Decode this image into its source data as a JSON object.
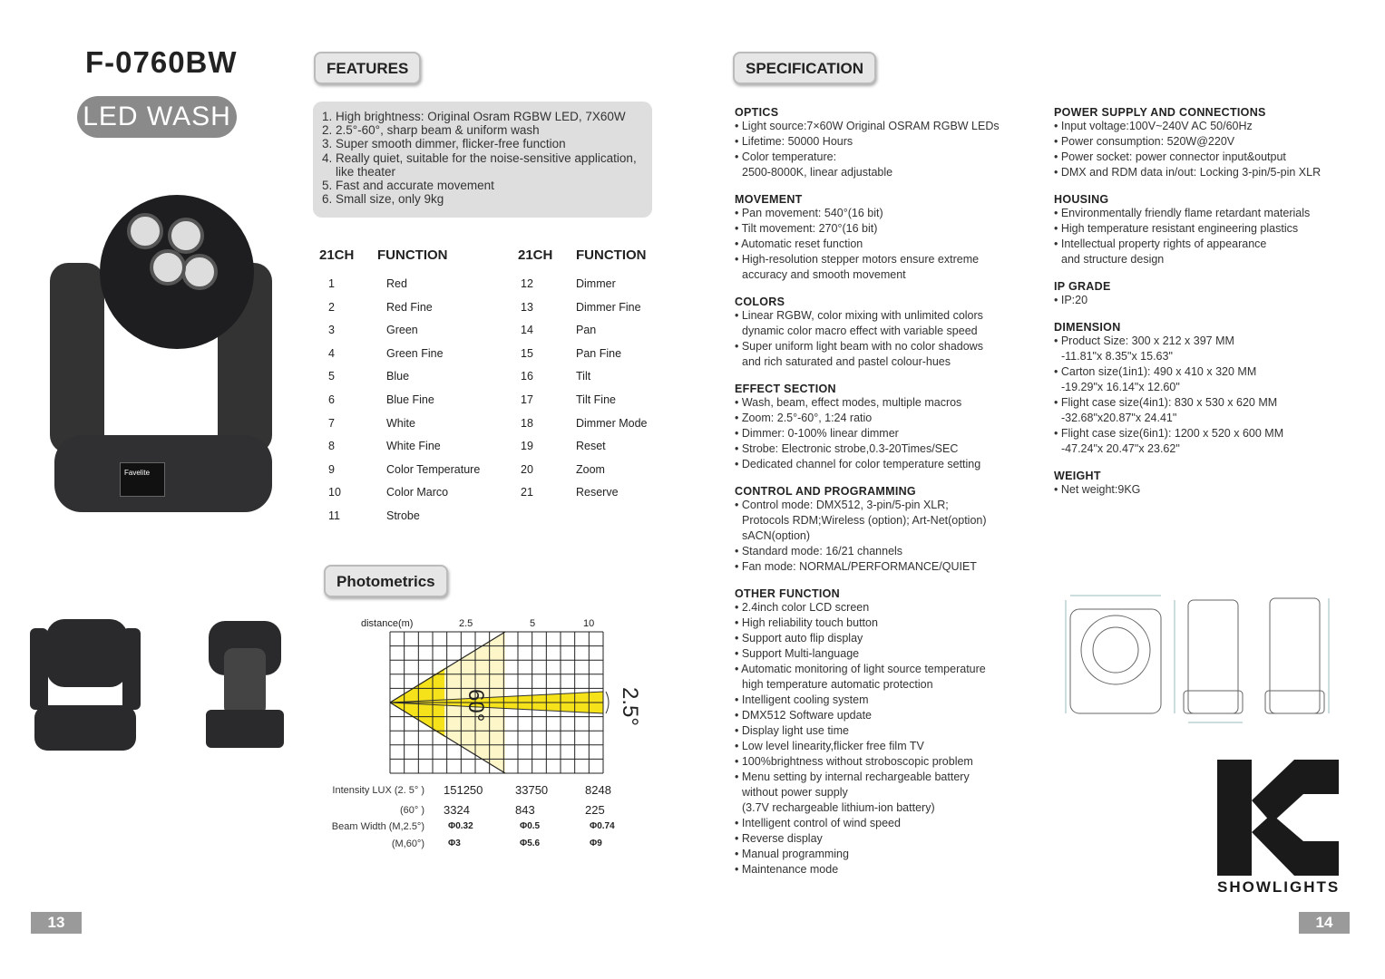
{
  "left_page": {
    "model": "F-0760BW",
    "subtitle": "LED WASH",
    "features_label": "FEATURES",
    "features": [
      "1. High brightness: Original Osram RGBW LED, 7X60W",
      "2. 2.5°-60°, sharp beam & uniform wash",
      "3. Super smooth dimmer, flicker-free function",
      "4. Really quiet, suitable for the noise-sensitive application, like theater",
      "5. Fast and accurate movement",
      "6. Small size, only 9kg"
    ],
    "channel_header": "21CH",
    "function_header": "FUNCTION",
    "channels_left": [
      [
        "1",
        "Red"
      ],
      [
        "2",
        "Red Fine"
      ],
      [
        "3",
        "Green"
      ],
      [
        "4",
        "Green Fine"
      ],
      [
        "5",
        "Blue"
      ],
      [
        "6",
        "Blue Fine"
      ],
      [
        "7",
        "White"
      ],
      [
        "8",
        "White Fine"
      ],
      [
        "9",
        "Color Temperature"
      ],
      [
        "10",
        "Color Marco"
      ],
      [
        "11",
        "Strobe"
      ]
    ],
    "channels_right": [
      [
        "12",
        "Dimmer"
      ],
      [
        "13",
        "Dimmer Fine"
      ],
      [
        "14",
        "Pan"
      ],
      [
        "15",
        "Pan Fine"
      ],
      [
        "16",
        "Tilt"
      ],
      [
        "17",
        "Tilt Fine"
      ],
      [
        "18",
        "Dimmer Mode"
      ],
      [
        "19",
        "Reset"
      ],
      [
        "20",
        "Zoom"
      ],
      [
        "21",
        "Reserve"
      ]
    ],
    "photometrics_label": "Photometrics",
    "device_screen_brand": "Favelite",
    "page_number": "13"
  },
  "chart_data": {
    "type": "table",
    "distance_label": "distance(m)",
    "distances": [
      "2.5",
      "5",
      "10"
    ],
    "angle_labels": [
      "60°",
      "2.5°"
    ],
    "rows": [
      {
        "label": "Intensity LUX (2. 5°  )",
        "values": [
          "151250",
          "33750",
          "8248"
        ]
      },
      {
        "label": "(60°  )",
        "values": [
          "3324",
          "843",
          "225"
        ]
      },
      {
        "label": "Beam Width (M,2.5°)",
        "values": [
          "Φ0.32",
          "Φ0.5",
          "Φ0.74"
        ]
      },
      {
        "label": "(M,60°)",
        "values": [
          "Φ3",
          "Φ5.6",
          "Φ9"
        ]
      }
    ],
    "colors": {
      "beam": "#f5e21a",
      "wide": "#fdf6c8"
    }
  },
  "right_page": {
    "spec_label": "SPECIFICATION",
    "col1": [
      {
        "title": "OPTICS",
        "items": [
          "• Light source:7×60W Original OSRAM RGBW LEDs",
          "• Lifetime: 50000 Hours",
          "• Color temperature:",
          "2500-8000K, linear adjustable"
        ]
      },
      {
        "title": "MOVEMENT",
        "items": [
          "• Pan movement: 540°(16 bit)",
          "• Tilt movement: 270°(16 bit)",
          "• Automatic reset function",
          "• High-resolution stepper motors ensure extreme",
          "accuracy and smooth movement"
        ]
      },
      {
        "title": "COLORS",
        "items": [
          "• Linear RGBW, color mixing with unlimited colors",
          "dynamic color macro effect with variable speed",
          "• Super uniform light beam with no color shadows",
          "and rich saturated and pastel colour-hues"
        ]
      },
      {
        "title": "EFFECT SECTION",
        "items": [
          "• Wash, beam, effect modes, multiple macros",
          "• Zoom: 2.5°-60°, 1:24 ratio",
          "• Dimmer: 0-100% linear dimmer",
          "• Strobe: Electronic strobe,0.3-20Times/SEC",
          "• Dedicated channel for color temperature setting"
        ]
      },
      {
        "title": "CONTROL AND PROGRAMMING",
        "items": [
          "• Control mode: DMX512, 3-pin/5-pin XLR;",
          "Protocols RDM;Wireless (option); Art-Net(option)",
          "sACN(option)",
          "• Standard mode: 16/21 channels",
          "• Fan mode: NORMAL/PERFORMANCE/QUIET"
        ]
      },
      {
        "title": "OTHER FUNCTION",
        "items": [
          "• 2.4inch color LCD screen",
          "• High reliability touch button",
          "• Support auto flip display",
          "• Support Multi-language",
          "• Automatic monitoring of light source temperature",
          "high temperature automatic protection",
          "• Intelligent cooling system",
          "• DMX512 Software update",
          "• Display light use time",
          "• Low level linearity,flicker free film TV",
          "• 100%brightness without stroboscopic problem",
          "• Menu setting by internal rechargeable battery",
          "without power supply",
          "(3.7V rechargeable lithium-ion battery)",
          "• Intelligent control of wind speed",
          "• Reverse display",
          "• Manual programming",
          "• Maintenance mode"
        ]
      }
    ],
    "col2": [
      {
        "title": "POWER SUPPLY AND CONNECTIONS",
        "items": [
          "• Input voltage:100V~240V AC 50/60Hz",
          "• Power consumption: 520W@220V",
          "• Power socket: power connector input&output",
          "• DMX and RDM data in/out: Locking 3-pin/5-pin XLR"
        ]
      },
      {
        "title": "HOUSING",
        "items": [
          "• Environmentally friendly flame retardant materials",
          "• High temperature resistant engineering plastics",
          "• Intellectual property rights of appearance",
          "and structure design"
        ]
      },
      {
        "title": "IP GRADE",
        "items": [
          "• IP:20"
        ]
      },
      {
        "title": "DIMENSION",
        "items": [
          "• Product Size: 300 x 212 x 397 MM",
          "-11.81\"x 8.35\"x 15.63\"",
          "• Carton size(1in1): 490 x 410 x 320 MM",
          "-19.29\"x 16.14\"x 12.60\"",
          "• Flight case size(4in1): 830 x 530 x 620 MM",
          "-32.68\"x20.87\"x 24.41\"",
          "• Flight case size(6in1): 1200 x 520 x 600 MM",
          "-47.24\"x 20.47\"x 23.62\""
        ]
      },
      {
        "title": "WEIGHT",
        "items": [
          "• Net weight:9KG"
        ]
      }
    ],
    "logo_text": "SHOWLIGHTS",
    "page_number": "14"
  }
}
